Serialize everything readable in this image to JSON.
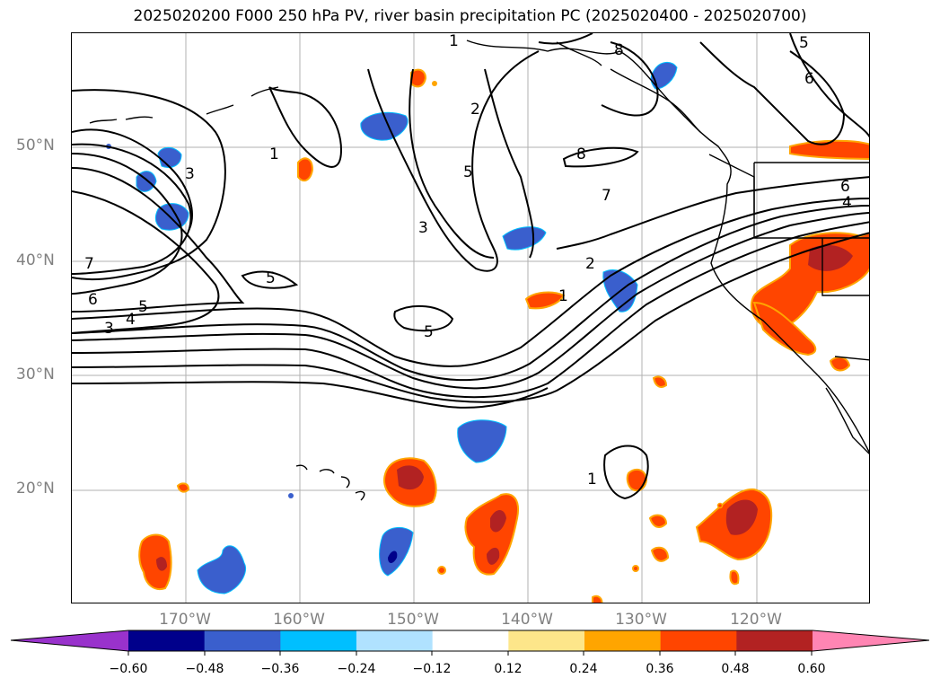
{
  "title": "2025020200 F000 250 hPa PV, river basin precipitation PC (2025020400 - 2025020700)",
  "lat_labels": [
    "50°N",
    "40°N",
    "30°N",
    "20°N"
  ],
  "lon_labels": [
    "170°W",
    "160°W",
    "150°W",
    "140°W",
    "130°W",
    "120°W"
  ],
  "colorbar": {
    "ticks": [
      "−0.60",
      "−0.48",
      "−0.36",
      "−0.24",
      "−0.12",
      "0.12",
      "0.24",
      "0.36",
      "0.48",
      "0.60"
    ],
    "colors": [
      "#9932cc",
      "#00008b",
      "#3a5fcd",
      "#00bfff",
      "#b0e2ff",
      "#ffffff",
      "#fde68a",
      "#ffa500",
      "#ff4500",
      "#b22222",
      "#ff85b3"
    ]
  },
  "contour_labels": [
    "1",
    "2",
    "3",
    "4",
    "5",
    "6",
    "7",
    "8"
  ],
  "map": {
    "lat_range": [
      10,
      60
    ],
    "lon_range": [
      -180,
      -110
    ],
    "gridlines": true,
    "field": "250 hPa PV",
    "shading": "river basin precipitation PC"
  }
}
